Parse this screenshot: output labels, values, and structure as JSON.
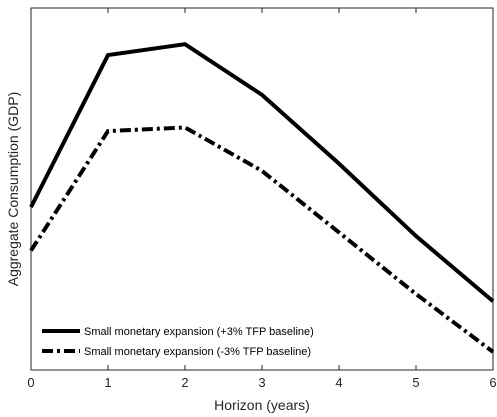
{
  "chart_data": {
    "type": "line",
    "xlabel": "Horizon (years)",
    "ylabel": "Aggregate Consumption (GDP)",
    "x": [
      0,
      1,
      2,
      3,
      4,
      5,
      6
    ],
    "xlim": [
      0,
      6
    ],
    "ylim": [
      0,
      1
    ],
    "y_ticks_shown": false,
    "grid": false,
    "legend_position": "bottom-left",
    "series": [
      {
        "name": "Small monetary expansion (+3% TFP baseline)",
        "values": [
          0.45,
          0.87,
          0.9,
          0.76,
          0.57,
          0.37,
          0.19
        ],
        "style": "solid",
        "color": "#000000"
      },
      {
        "name": "Small monetary expansion (-3% TFP baseline)",
        "values": [
          0.33,
          0.66,
          0.67,
          0.55,
          0.38,
          0.21,
          0.05
        ],
        "style": "dashdot",
        "color": "#000000"
      }
    ]
  }
}
